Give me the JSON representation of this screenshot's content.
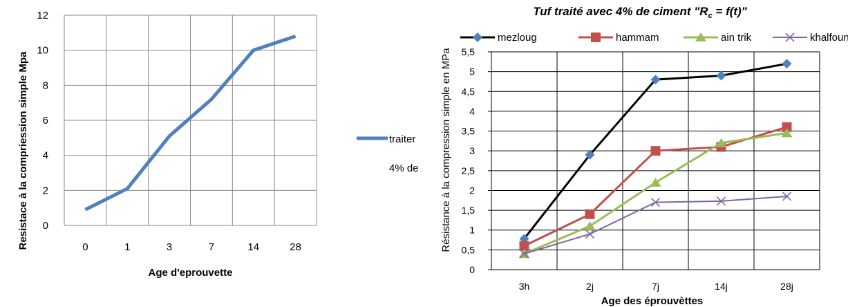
{
  "chart_data": [
    {
      "type": "line",
      "title": "",
      "xlabel": "Age d'eprouvette",
      "ylabel": "Resistace à la compriession simple Mpa",
      "categories": [
        "0",
        "1",
        "3",
        "7",
        "14",
        "28"
      ],
      "ylim": [
        0,
        12
      ],
      "yticks": [
        "0",
        "2",
        "4",
        "6",
        "8",
        "10",
        "12"
      ],
      "grid": true,
      "legend_position": "right",
      "series": [
        {
          "name_lines": [
            "traiter",
            "4% de"
          ],
          "color": "#4f81bd",
          "values": [
            0.9,
            2.1,
            5.1,
            7.2,
            10.0,
            10.8
          ]
        }
      ]
    },
    {
      "type": "line",
      "title": "Tuf  traité avec 4% de ciment \"R",
      "title_sub": "c",
      "title_tail": " = f(t)\"",
      "xlabel": "Age des éprouvèttes",
      "ylabel": "Résistance à la compression simple en MPa",
      "categories": [
        "3h",
        "2j",
        "7j",
        "14j",
        "28j"
      ],
      "ylim": [
        0,
        5.5
      ],
      "yticks": [
        "0",
        "0,5",
        "1",
        "1,5",
        "2",
        "2,5",
        "3",
        "3,5",
        "4",
        "4,5",
        "5",
        "5,5"
      ],
      "grid": true,
      "legend_position": "top",
      "series": [
        {
          "name": "mezloug",
          "color": "#000000",
          "marker_color": "#4f81bd",
          "marker": "diamond",
          "values": [
            0.78,
            2.9,
            4.8,
            4.9,
            5.2
          ]
        },
        {
          "name": "hammam",
          "color": "#c0504d",
          "marker_color": "#c0504d",
          "marker": "square",
          "values": [
            0.6,
            1.4,
            3.0,
            3.1,
            3.6
          ]
        },
        {
          "name": "ain trik",
          "color": "#9bbb59",
          "marker_color": "#9bbb59",
          "marker": "triangle",
          "values": [
            0.4,
            1.1,
            2.2,
            3.2,
            3.45
          ]
        },
        {
          "name": "khalfoun",
          "color": "#8064a2",
          "marker_color": "#8064a2",
          "marker": "x",
          "values": [
            0.4,
            0.9,
            1.7,
            1.73,
            1.85
          ]
        }
      ]
    }
  ]
}
